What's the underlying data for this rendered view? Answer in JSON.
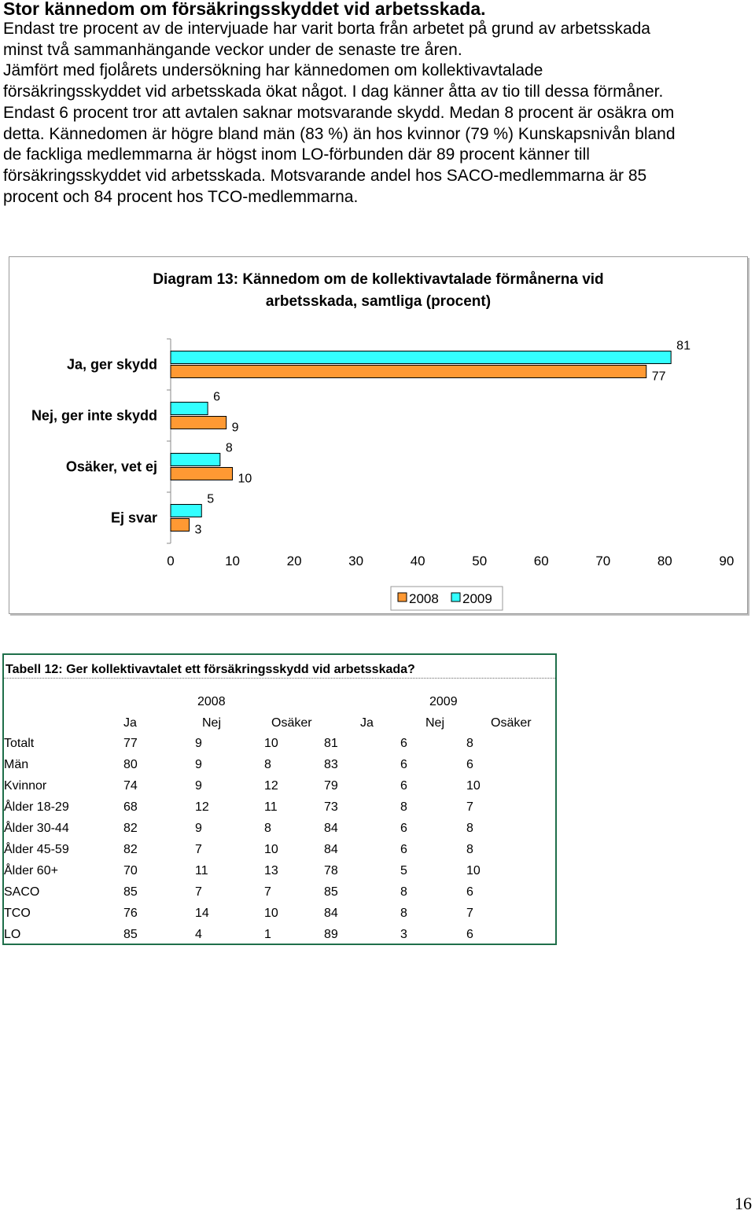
{
  "document": {
    "heading": "Stor kännedom om försäkringsskyddet vid arbetsskada.",
    "paragraph_lines": [
      "Endast tre procent av de intervjuade har varit borta från arbetet på grund av arbetsskada",
      "minst två sammanhängande veckor under de senaste tre åren.",
      "Jämfört med fjolårets undersökning har kännedomen om kollektivavtalade",
      "försäkringsskyddet vid arbetsskada ökat något. I dag känner åtta av tio till dessa förmåner.",
      "Endast 6 procent tror att avtalen saknar motsvarande skydd. Medan 8 procent är osäkra om",
      "detta. Kännedomen är högre bland män (83 %) än hos kvinnor (79 %) Kunskapsnivån bland",
      "de fackliga medlemmarna är högst inom LO-förbunden där 89 procent känner till",
      "försäkringsskyddet vid arbetsskada. Motsvarande andel hos SACO-medlemmarna är 85",
      "procent och 84 procent hos TCO-medlemmarna."
    ],
    "page_number": "16"
  },
  "chart_data": {
    "type": "bar",
    "orientation": "horizontal",
    "title_lines": [
      "Diagram 13: Kännedom om de kollektivavtalade förmånerna vid",
      "arbetsskada, samtliga (procent)"
    ],
    "categories": [
      "Ja, ger skydd",
      "Nej, ger inte skydd",
      "Osäker, vet ej",
      "Ej svar"
    ],
    "series": [
      {
        "name": "2008",
        "values": [
          77,
          9,
          10,
          3
        ],
        "color": "#ff9933"
      },
      {
        "name": "2009",
        "values": [
          81,
          6,
          8,
          5
        ],
        "color": "#33ffff"
      }
    ],
    "xlim": [
      0,
      90
    ],
    "xticks": [
      0,
      10,
      20,
      30,
      40,
      50,
      60,
      70,
      80,
      90
    ],
    "legend_position": "bottom",
    "grid": false
  },
  "table": {
    "title": "Tabell 12: Ger kollektivavtalet ett försäkringsskydd vid arbetsskada?",
    "years": [
      "2008",
      "2009"
    ],
    "column_headers": [
      "Ja",
      "Nej",
      "Osäker",
      "Ja",
      "Nej",
      "Osäker"
    ],
    "rows": [
      {
        "label": "Totalt",
        "values": [
          "77",
          "9",
          "10",
          "81",
          "6",
          "8"
        ]
      },
      {
        "label": "Män",
        "values": [
          "80",
          "9",
          "8",
          "83",
          "6",
          "6"
        ]
      },
      {
        "label": "Kvinnor",
        "values": [
          "74",
          "9",
          "12",
          "79",
          "6",
          "10"
        ]
      },
      {
        "label": "Ålder 18-29",
        "values": [
          "68",
          "12",
          "11",
          "73",
          "8",
          "7"
        ]
      },
      {
        "label": "Ålder 30-44",
        "values": [
          "82",
          "9",
          "8",
          "84",
          "6",
          "8"
        ]
      },
      {
        "label": "Ålder 45-59",
        "values": [
          "82",
          "7",
          "10",
          "84",
          "6",
          "8"
        ]
      },
      {
        "label": "Ålder 60+",
        "values": [
          "70",
          "11",
          "13",
          "78",
          "5",
          "10"
        ]
      },
      {
        "label": "SACO",
        "values": [
          "85",
          "7",
          "7",
          "85",
          "8",
          "6"
        ]
      },
      {
        "label": "TCO",
        "values": [
          "76",
          "14",
          "10",
          "84",
          "8",
          "7"
        ]
      },
      {
        "label": "LO",
        "values": [
          "85",
          "4",
          "1",
          "89",
          "3",
          "6"
        ]
      }
    ]
  }
}
